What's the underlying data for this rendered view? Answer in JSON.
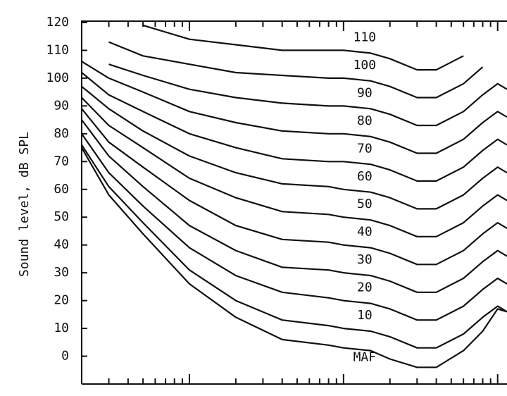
{
  "chart_data": {
    "type": "line",
    "y_label": "Sound level, dB SPL",
    "log_x": true,
    "color": "#111111",
    "xlim": [
      20,
      11500
    ],
    "xticks": [
      30,
      40,
      50,
      60,
      70,
      80,
      90,
      100,
      200,
      300,
      400,
      500,
      600,
      700,
      800,
      900,
      1000,
      2000,
      3000,
      4000,
      5000,
      6000,
      7000,
      8000,
      9000,
      10000
    ],
    "ylim": [
      -10,
      120.5
    ],
    "yticks": [
      0,
      10,
      20,
      30,
      40,
      50,
      60,
      70,
      80,
      90,
      100,
      110,
      120
    ],
    "x": [
      20,
      30,
      50,
      100,
      200,
      400,
      800,
      1000,
      1500,
      2000,
      3000,
      4000,
      6000,
      8000,
      10000,
      11500
    ],
    "series": [
      {
        "name": "110",
        "values": [
          null,
          null,
          119,
          114,
          112,
          110,
          110,
          110,
          109,
          107,
          103,
          103,
          108,
          null,
          null,
          null
        ]
      },
      {
        "name": "100",
        "values": [
          null,
          113,
          108,
          105,
          102,
          101,
          100,
          100,
          99,
          97,
          93,
          93,
          98,
          104,
          null,
          null
        ]
      },
      {
        "name": "90",
        "values": [
          null,
          105,
          101,
          96,
          93,
          91,
          90,
          90,
          89,
          87,
          83,
          83,
          88,
          94,
          98,
          96
        ]
      },
      {
        "name": "80",
        "values": [
          106,
          100,
          95,
          88,
          84,
          81,
          80,
          80,
          79,
          77,
          73,
          73,
          78,
          84,
          88,
          86
        ]
      },
      {
        "name": "70",
        "values": [
          102,
          94,
          88,
          80,
          75,
          71,
          70,
          70,
          69,
          67,
          63,
          63,
          68,
          74,
          78,
          76
        ]
      },
      {
        "name": "60",
        "values": [
          97,
          89,
          81,
          72,
          66,
          62,
          61,
          60,
          59,
          57,
          53,
          53,
          58,
          64,
          68,
          66
        ]
      },
      {
        "name": "50",
        "values": [
          93,
          83,
          75,
          64,
          57,
          52,
          51,
          50,
          49,
          47,
          43,
          43,
          48,
          54,
          58,
          56
        ]
      },
      {
        "name": "40",
        "values": [
          89,
          77,
          68,
          56,
          47,
          42,
          41,
          40,
          39,
          37,
          33,
          33,
          38,
          44,
          48,
          46
        ]
      },
      {
        "name": "30",
        "values": [
          85,
          72,
          61,
          47,
          38,
          32,
          31,
          30,
          29,
          27,
          23,
          23,
          28,
          34,
          38,
          36
        ]
      },
      {
        "name": "20",
        "values": [
          80,
          66,
          54,
          39,
          29,
          23,
          21,
          20,
          19,
          17,
          13,
          13,
          18,
          24,
          28,
          26
        ]
      },
      {
        "name": "10",
        "values": [
          76,
          61,
          48,
          31,
          20,
          13,
          11,
          10,
          9,
          7,
          3,
          3,
          8,
          14,
          18,
          16
        ]
      },
      {
        "name": "MAF",
        "values": [
          75,
          58,
          44,
          26,
          14,
          6,
          4,
          3,
          2,
          -1,
          -4,
          -4,
          2,
          9,
          17,
          16
        ]
      }
    ]
  }
}
